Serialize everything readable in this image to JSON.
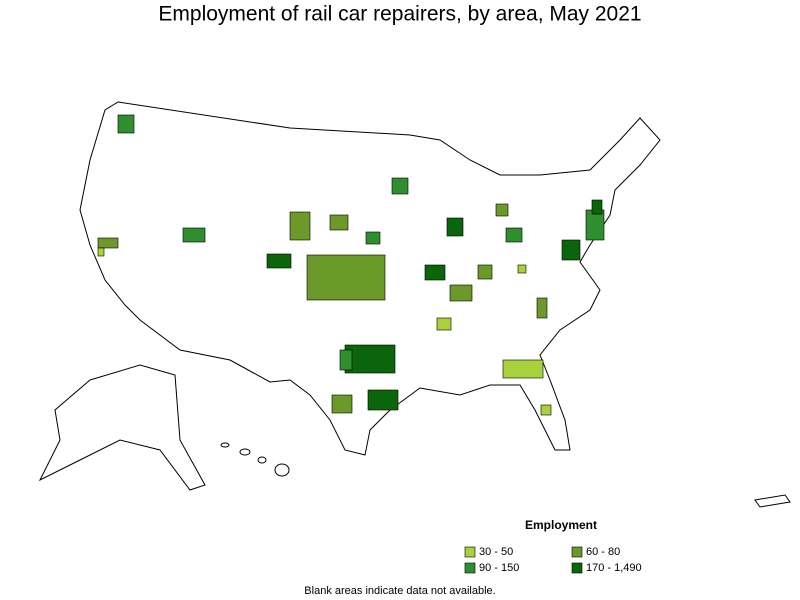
{
  "title": "Employment of rail car repairers, by area, May 2021",
  "legend": {
    "title": "Employment",
    "items": [
      {
        "label": "30 - 50",
        "color": "#a8d23c"
      },
      {
        "label": "60 - 80",
        "color": "#6b9a2a"
      },
      {
        "label": "90 - 150",
        "color": "#2f8f2f"
      },
      {
        "label": "170 - 1,490",
        "color": "#0b650b"
      }
    ]
  },
  "footnote": "Blank areas indicate data not available."
}
